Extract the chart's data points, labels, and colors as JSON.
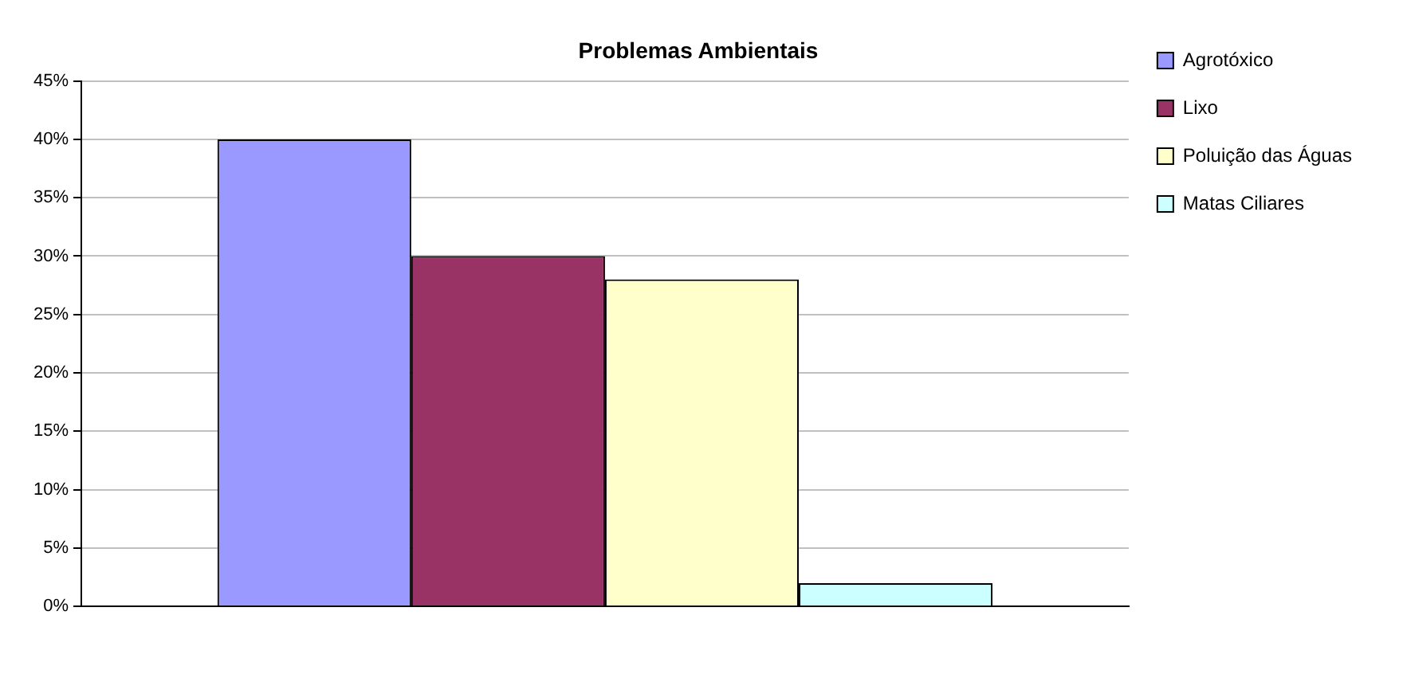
{
  "chart_data": {
    "type": "bar",
    "title": "Problemas Ambientais",
    "categories": [
      null
    ],
    "series": [
      {
        "name": "Agrotóxico",
        "color": "#9999ff",
        "values": [
          40
        ]
      },
      {
        "name": "Lixo",
        "color": "#993366",
        "values": [
          30
        ]
      },
      {
        "name": "Poluição das Águas",
        "color": "#ffffcc",
        "values": [
          28
        ]
      },
      {
        "name": "Matas Ciliares",
        "color": "#ccffff",
        "values": [
          2
        ]
      }
    ],
    "ylim": [
      0,
      45
    ],
    "yticks": [
      {
        "value": 0,
        "label": "0%"
      },
      {
        "value": 5,
        "label": "5%"
      },
      {
        "value": 10,
        "label": "10%"
      },
      {
        "value": 15,
        "label": "15%"
      },
      {
        "value": 20,
        "label": "20%"
      },
      {
        "value": 25,
        "label": "25%"
      },
      {
        "value": 30,
        "label": "30%"
      },
      {
        "value": 35,
        "label": "35%"
      },
      {
        "value": 40,
        "label": "40%"
      },
      {
        "value": 45,
        "label": "45%"
      }
    ],
    "grid": "y",
    "legend": "right"
  }
}
